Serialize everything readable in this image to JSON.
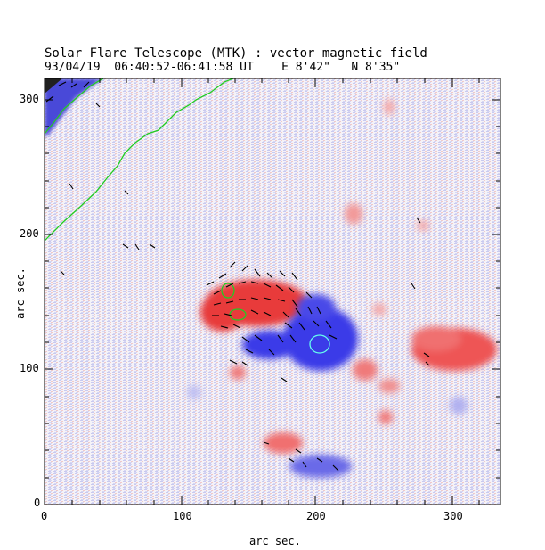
{
  "figure": {
    "title": "Solar Flare Telescope (MTK) : vector magnetic field",
    "date": "93/04/19",
    "time_range": "06:40:52-06:41:58 UT",
    "position": "E 8'42\"   N 8'35\"",
    "xlabel": "arc sec.",
    "ylabel": "arc sec."
  },
  "axes": {
    "x_ticks": [
      "0",
      "100",
      "200",
      "300"
    ],
    "y_ticks": [
      "0",
      "100",
      "200",
      "300"
    ],
    "x_range": [
      0,
      340
    ],
    "y_range": [
      0,
      315
    ]
  },
  "colors": {
    "positive_field": "#e83a3a",
    "negative_field": "#3a3ae8",
    "contour": "#22cc22",
    "vectors": "#000000",
    "frame": "#000000"
  }
}
